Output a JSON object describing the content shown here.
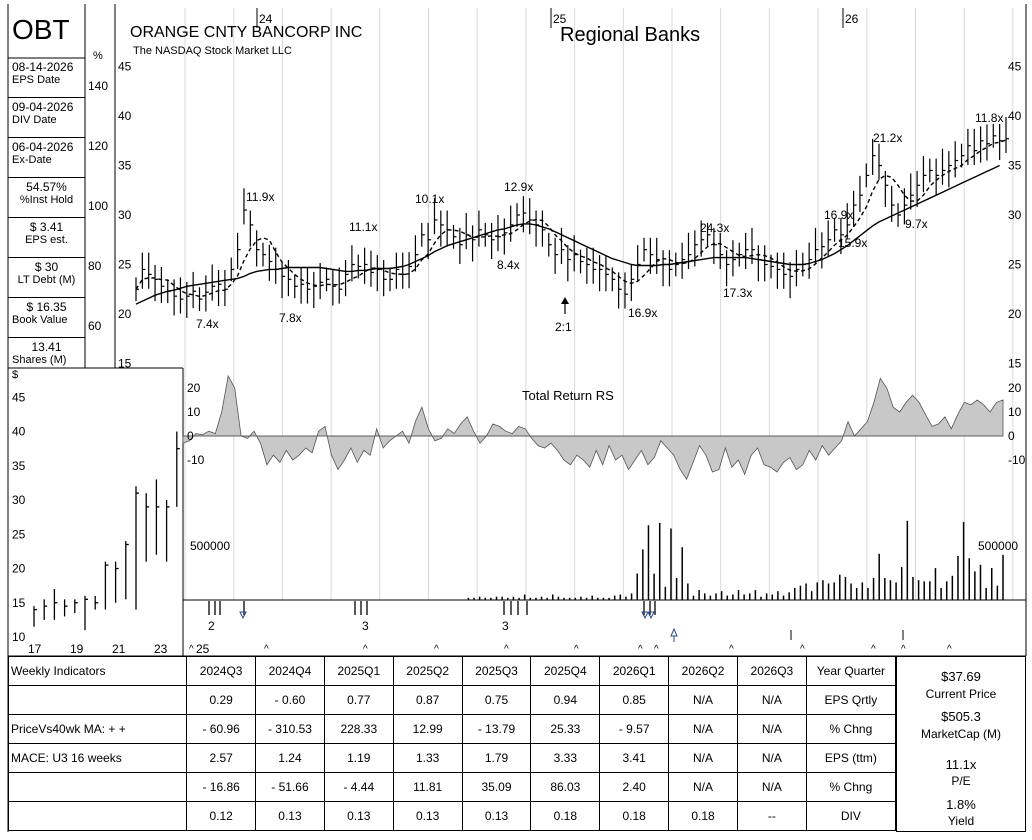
{
  "header": {
    "ticker": "OBT",
    "company": "ORANGE CNTY BANCORP INC",
    "exchange": "The NASDAQ Stock Market LLC",
    "industry": "Regional Banks",
    "percent_unit": "%",
    "dollar_unit": "$"
  },
  "sidebar": [
    {
      "value": "08-14-2026",
      "label": "EPS Date"
    },
    {
      "value": "09-04-2026",
      "label": "DIV Date"
    },
    {
      "value": "06-04-2026",
      "label": "Ex-Date"
    },
    {
      "value": "54.57%",
      "label": "%Inst Hold"
    },
    {
      "value": "$ 3.41",
      "label": "EPS est."
    },
    {
      "value": "$ 30",
      "label": "LT Debt (M)"
    },
    {
      "value": "$ 16.35",
      "label": "Book Value"
    },
    {
      "value": "13.41",
      "label": "Shares (M)"
    }
  ],
  "chart_data": [
    {
      "type": "line",
      "name": "weekly-price",
      "title": "",
      "x_labels": [
        "24",
        "25",
        "26"
      ],
      "y_ticks": [
        15,
        20,
        25,
        30,
        35,
        40,
        45
      ],
      "ylim": [
        14,
        47
      ],
      "pct_ticks": [
        60,
        80,
        100,
        120,
        140
      ],
      "series": [
        {
          "values": [
            22.5,
            24.5,
            24,
            23.5,
            22.8,
            22.3,
            21.8,
            21.5,
            21.8,
            22.3,
            21.5,
            22.2,
            22.8,
            23,
            22.5,
            24.5,
            26.5,
            30.5,
            29,
            26.5,
            26,
            25.3,
            24.5,
            23.8,
            23.5,
            22.8,
            23,
            22.5,
            22.8,
            23.2,
            23.5,
            22.8,
            22.5,
            24,
            25,
            24.8,
            25,
            24.2,
            24.5,
            23.5,
            23.5,
            24.5,
            24,
            24.8,
            26,
            28,
            27.5,
            29.5,
            29,
            28.5,
            27.8,
            27,
            28,
            27.5,
            28.5,
            28,
            27.5,
            27.8,
            28.2,
            29,
            30,
            30.2,
            29.5,
            29,
            28.5,
            27,
            26,
            26.5,
            25.5,
            26,
            25.3,
            25,
            24.5,
            24.5,
            24,
            23.5,
            22.5,
            22,
            23.5,
            25,
            26.5,
            26,
            25.5,
            25,
            24.5,
            25,
            25.5,
            26,
            27,
            27.5,
            28,
            27,
            26,
            25,
            25.5,
            26,
            26.5,
            26.5,
            25.5,
            25,
            24.8,
            24.5,
            24,
            23.8,
            24.5,
            25,
            25.5,
            26.5,
            26.8,
            27.5,
            28.5,
            28,
            29,
            31,
            32,
            34,
            36,
            35,
            33,
            31,
            30,
            31,
            32,
            33,
            34,
            34.5,
            34,
            34.5,
            35,
            35.5,
            36,
            37,
            36.5,
            37.5,
            37.2,
            38,
            37.5,
            37.7
          ]
        },
        {
          "values": [
            21,
            21.3,
            21.6,
            21.9,
            22.1,
            22.3,
            22.4,
            22.6,
            22.8,
            22.9,
            23,
            23.1,
            23.2,
            23.3,
            23.4,
            23.5,
            23.6,
            23.8,
            24.1,
            24.3,
            24.4,
            24.5,
            24.5,
            24.6,
            24.7,
            24.7,
            24.7,
            24.7,
            24.7,
            24.7,
            24.6,
            24.5,
            24.4,
            24.3,
            24.3,
            24.4,
            24.4,
            24.5,
            24.6,
            24.6,
            24.6,
            24.7,
            24.8,
            25,
            25.3,
            25.6,
            25.9,
            26.3,
            26.6,
            26.9,
            27.1,
            27.3,
            27.5,
            27.7,
            27.9,
            28.1,
            28.3,
            28.5,
            28.6,
            28.8,
            29,
            29.1,
            29.1,
            29,
            28.8,
            28.6,
            28.3,
            28,
            27.7,
            27.4,
            27.1,
            26.8,
            26.5,
            26.2,
            25.9,
            25.6,
            25.4,
            25.2,
            25,
            24.9,
            24.9,
            24.9,
            24.9,
            25,
            25,
            25.1,
            25.2,
            25.3,
            25.4,
            25.5,
            25.6,
            25.7,
            25.7,
            25.7,
            25.7,
            25.7,
            25.7,
            25.6,
            25.5,
            25.4,
            25.3,
            25.2,
            25.1,
            25,
            25,
            25,
            25.1,
            25.3,
            25.5,
            25.8,
            26.1,
            26.5,
            26.9,
            27.4,
            27.9,
            28.4,
            28.9,
            29.3,
            29.6,
            29.9,
            30.2,
            30.5,
            30.8,
            31.1,
            31.4,
            31.7,
            32,
            32.3,
            32.6,
            32.9,
            33.2,
            33.5,
            33.8,
            34.1,
            34.4,
            34.7,
            35
          ]
        }
      ],
      "annotations": [
        "7.4x",
        "11.9x",
        "7.8x",
        "11.1x",
        "10.1x",
        "12.9x",
        "8.4x",
        "16.9x",
        "24.3x",
        "17.3x",
        "16.9x",
        "15.9x",
        "21.2x",
        "9.7x",
        "11.8x"
      ],
      "split_marker": "2:1"
    },
    {
      "type": "area",
      "name": "total-return-rs",
      "title": "Total Return RS",
      "y_ticks": [
        -10,
        0,
        10,
        20
      ],
      "values": [
        -3,
        -2,
        1,
        0.5,
        2,
        1,
        10,
        25,
        20,
        0,
        -1,
        2,
        -3,
        -12,
        -8,
        -11,
        -6,
        -10,
        -8,
        -5,
        -7,
        2,
        4,
        -8,
        -14,
        -10,
        -5,
        -11,
        -6,
        -8,
        3,
        -5,
        -2,
        0,
        2,
        -3,
        6,
        12,
        3,
        -2,
        -1,
        3,
        1,
        5,
        8,
        2,
        -3,
        0,
        5,
        4,
        2,
        1,
        4,
        3,
        -1,
        -4,
        -5,
        -3,
        -6,
        -10,
        -12,
        -8,
        -10,
        -13,
        -6,
        -12,
        -4,
        -10,
        -8,
        -14,
        -10,
        -6,
        -12,
        -9,
        -2,
        -5,
        -8,
        -14,
        -18,
        -11,
        -4,
        -8,
        -15,
        -14,
        -5,
        -13,
        -10,
        -16,
        -8,
        -5,
        -12,
        -13,
        -15,
        -11,
        -9,
        -14,
        -12,
        -6,
        -10,
        -4,
        -8,
        -5,
        -2,
        6,
        0,
        3,
        6,
        14,
        24,
        20,
        12,
        10,
        14,
        17,
        14,
        9,
        4,
        5,
        8,
        3,
        9,
        14,
        13,
        15,
        13,
        10,
        14,
        15
      ]
    },
    {
      "type": "bar",
      "name": "weekly-volume",
      "title": "",
      "label": "500000",
      "ref_value": 500000,
      "values": [
        0,
        0,
        0,
        0,
        0,
        0,
        0,
        0,
        0,
        0,
        0,
        0,
        0,
        0,
        0,
        0,
        0,
        0,
        0,
        0,
        0,
        0,
        0,
        0,
        0,
        0,
        0,
        0,
        0,
        0,
        0,
        0,
        0,
        0,
        0,
        0,
        0,
        0,
        0,
        0,
        0,
        0,
        0,
        0,
        0,
        0,
        0,
        0,
        0,
        0,
        20000,
        20000,
        30000,
        20000,
        20000,
        30000,
        30000,
        20000,
        30000,
        20000,
        50000,
        20000,
        20000,
        30000,
        20000,
        50000,
        30000,
        20000,
        20000,
        20000,
        30000,
        20000,
        40000,
        20000,
        20000,
        20000,
        40000,
        50000,
        30000,
        60000,
        240000,
        460000,
        680000,
        240000,
        700000,
        120000,
        650000,
        200000,
        480000,
        150000,
        40000,
        90000,
        60000,
        40000,
        60000,
        80000,
        40000,
        50000,
        90000,
        50000,
        60000,
        90000,
        30000,
        60000,
        50000,
        80000,
        40000,
        70000,
        110000,
        130000,
        150000,
        80000,
        160000,
        180000,
        150000,
        160000,
        230000,
        210000,
        150000,
        110000,
        160000,
        110000,
        200000,
        420000,
        200000,
        180000,
        160000,
        300000,
        720000,
        210000,
        180000,
        170000,
        170000,
        290000,
        110000,
        170000,
        220000,
        400000,
        710000,
        380000,
        260000,
        320000,
        110000,
        290000,
        130000,
        410000
      ]
    },
    {
      "type": "bar",
      "name": "quarterly-price-inset",
      "title": "",
      "x_labels": [
        "17",
        "19",
        "21",
        "23",
        "25"
      ],
      "y_ticks": [
        10,
        15,
        20,
        25,
        30,
        35,
        40,
        45
      ],
      "bars": [
        {
          "low": 11.5,
          "high": 14.5,
          "close": 14
        },
        {
          "low": 12.5,
          "high": 15.5,
          "close": 14.5
        },
        {
          "low": 12.5,
          "high": 17,
          "close": 15
        },
        {
          "low": 13,
          "high": 15.5,
          "close": 14.5
        },
        {
          "low": 13.5,
          "high": 15.5,
          "close": 15
        },
        {
          "low": 11,
          "high": 16,
          "close": 15.5
        },
        {
          "low": 14,
          "high": 16,
          "close": 15
        },
        {
          "low": 14,
          "high": 21,
          "close": 20.5
        },
        {
          "low": 15,
          "high": 21,
          "close": 20
        },
        {
          "low": 15.5,
          "high": 24,
          "close": 23.5
        },
        {
          "low": 14,
          "high": 32,
          "close": 31
        },
        {
          "low": 21,
          "high": 31,
          "close": 29
        },
        {
          "low": 22,
          "high": 33,
          "close": 29
        },
        {
          "low": 21,
          "high": 30,
          "close": 29
        },
        {
          "low": 29,
          "high": 40,
          "close": 37.5
        }
      ]
    }
  ],
  "markers": {
    "row1": [
      "2",
      "3",
      "3"
    ],
    "carets": "^"
  },
  "table": {
    "header_label": "Weekly Indicators",
    "quarters": [
      "2024Q3",
      "2024Q4",
      "2025Q1",
      "2025Q2",
      "2025Q3",
      "2025Q4",
      "2026Q1",
      "2026Q2",
      "2026Q3"
    ],
    "header_right": "Year Quarter",
    "rows": [
      {
        "label": "",
        "values": [
          "0.29",
          "- 0.60",
          "0.77",
          "0.87",
          "0.75",
          "0.94",
          "0.85",
          "N/A",
          "N/A"
        ],
        "right": "EPS Qrtly"
      },
      {
        "label": "PriceVs40wk MA:  + +",
        "values": [
          "- 60.96",
          "- 310.53",
          "228.33",
          "12.99",
          "- 13.79",
          "25.33",
          "- 9.57",
          "N/A",
          "N/A"
        ],
        "right": "% Chng"
      },
      {
        "label": "MACE: U3  16 weeks",
        "values": [
          "2.57",
          "1.24",
          "1.19",
          "1.33",
          "1.79",
          "3.33",
          "3.41",
          "N/A",
          "N/A"
        ],
        "right": "EPS (ttm)"
      },
      {
        "label": "",
        "values": [
          "- 16.86",
          "- 51.66",
          "- 4.44",
          "11.81",
          "35.09",
          "86.03",
          "2.40",
          "N/A",
          "N/A"
        ],
        "right": "% Chng"
      },
      {
        "label": "",
        "values": [
          "0.12",
          "0.13",
          "0.13",
          "0.13",
          "0.13",
          "0.18",
          "0.18",
          "0.18",
          "--"
        ],
        "right": "DIV"
      }
    ]
  },
  "right_panel": {
    "price": "$37.69",
    "price_label": "Current Price",
    "marketcap": "$505.3",
    "marketcap_label": "MarketCap (M)",
    "pe": "11.1x",
    "pe_label": "P/E",
    "yield": "1.8%",
    "yield_label": "Yield"
  }
}
